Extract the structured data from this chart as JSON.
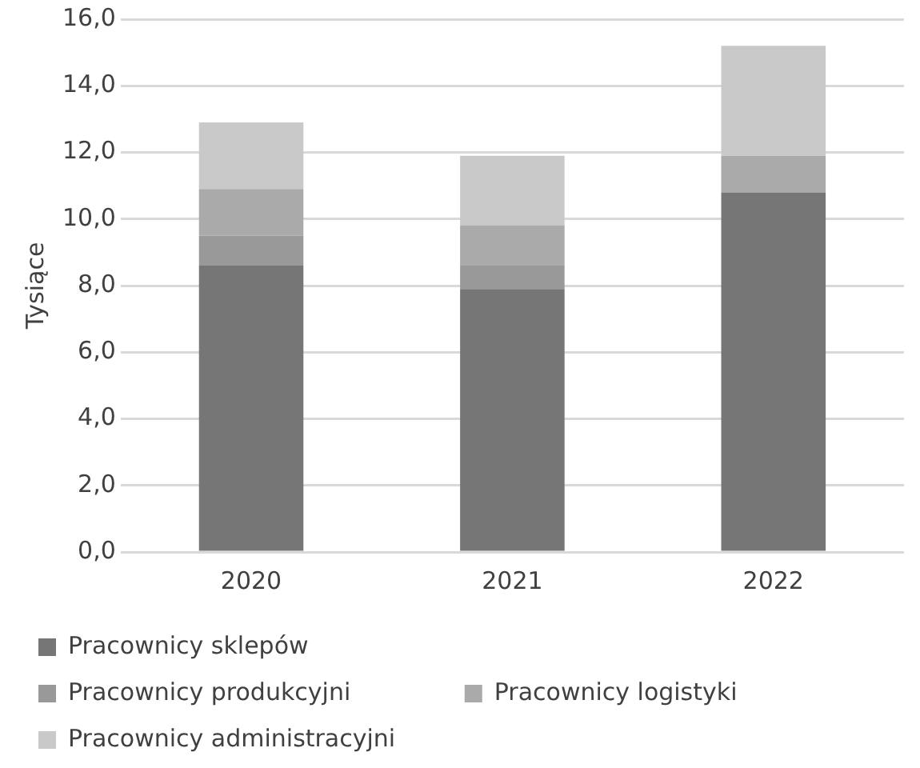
{
  "chart_data": {
    "type": "bar",
    "ylabel": "Tysiące",
    "categories": [
      "2020",
      "2021",
      "2022"
    ],
    "stacked": true,
    "series": [
      {
        "name": "Pracownicy sklepów",
        "color": "#767676",
        "values": [
          8.6,
          7.9,
          10.8
        ]
      },
      {
        "name": "Pracownicy produkcyjni",
        "color": "#999999",
        "values": [
          0.9,
          0.7,
          0
        ]
      },
      {
        "name": "Pracownicy logistyki",
        "color": "#aaaaaa",
        "values": [
          1.4,
          1.2,
          1.1
        ]
      },
      {
        "name": "Pracownicy administracyjni",
        "color": "#c9c9c9",
        "values": [
          2.0,
          2.1,
          3.3
        ]
      }
    ],
    "ylim": [
      0,
      16
    ],
    "yticks": [
      {
        "value": 0,
        "label": "0,0"
      },
      {
        "value": 2,
        "label": "2,0"
      },
      {
        "value": 4,
        "label": "4,0"
      },
      {
        "value": 6,
        "label": "6,0"
      },
      {
        "value": 8,
        "label": "8,0"
      },
      {
        "value": 10,
        "label": "10,0"
      },
      {
        "value": 12,
        "label": "12,0"
      },
      {
        "value": 14,
        "label": "14,0"
      },
      {
        "value": 16,
        "label": "16,0"
      }
    ],
    "grid": "y",
    "legend": "bottom"
  }
}
